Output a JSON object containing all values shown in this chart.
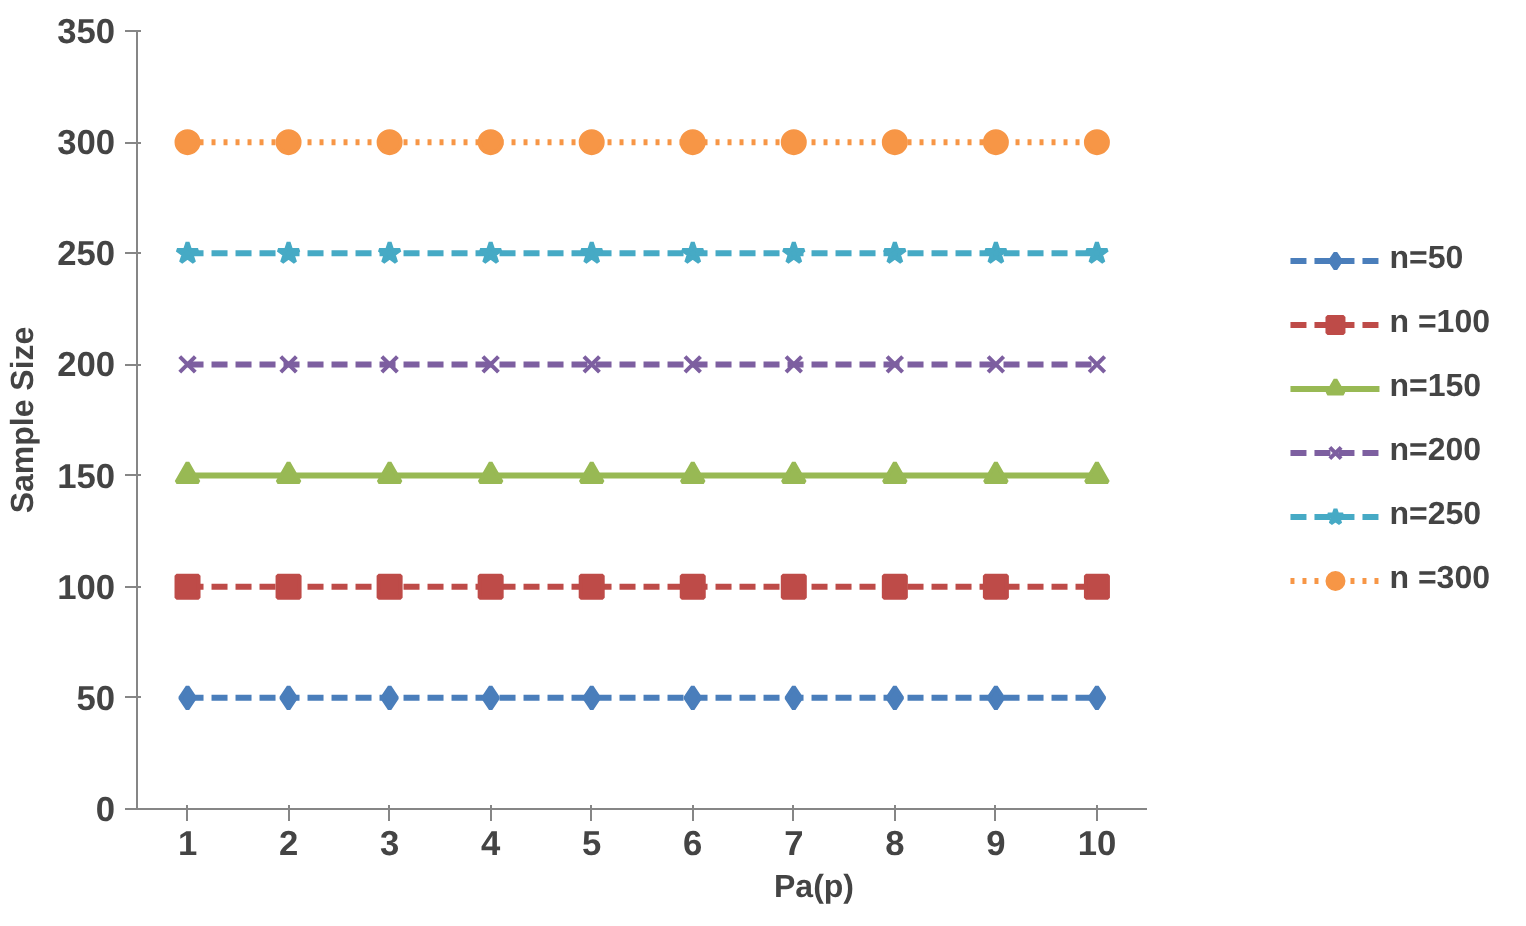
{
  "chart_data": {
    "type": "line",
    "xlabel": "Pa(p)",
    "ylabel": "Sample Size",
    "categories": [
      "1",
      "2",
      "3",
      "4",
      "5",
      "6",
      "7",
      "8",
      "9",
      "10"
    ],
    "ylim": [
      0,
      350
    ],
    "yticks": [
      0,
      50,
      100,
      150,
      200,
      250,
      300,
      350
    ],
    "grid": false,
    "legend": "right",
    "series": [
      {
        "name": "n=50",
        "color": "#4a7ebb",
        "marker": "diamond",
        "line_style": "dashed",
        "values": [
          50,
          50,
          50,
          50,
          50,
          50,
          50,
          50,
          50,
          50
        ]
      },
      {
        "name": "n =100",
        "color": "#be4b48",
        "marker": "square",
        "line_style": "dashed",
        "values": [
          100,
          100,
          100,
          100,
          100,
          100,
          100,
          100,
          100,
          100
        ]
      },
      {
        "name": "n=150",
        "color": "#98b954",
        "marker": "triangle",
        "line_style": "solid",
        "values": [
          150,
          150,
          150,
          150,
          150,
          150,
          150,
          150,
          150,
          150
        ]
      },
      {
        "name": "n=200",
        "color": "#7d5fa0",
        "marker": "cross",
        "line_style": "dashed",
        "values": [
          200,
          200,
          200,
          200,
          200,
          200,
          200,
          200,
          200,
          200
        ]
      },
      {
        "name": "n=250",
        "color": "#46aac5",
        "marker": "star",
        "line_style": "dashed",
        "values": [
          250,
          250,
          250,
          250,
          250,
          250,
          250,
          250,
          250,
          250
        ]
      },
      {
        "name": "n =300",
        "color": "#f79646",
        "marker": "circle",
        "line_style": "dotted",
        "values": [
          300,
          300,
          300,
          300,
          300,
          300,
          300,
          300,
          300,
          300
        ]
      }
    ]
  }
}
